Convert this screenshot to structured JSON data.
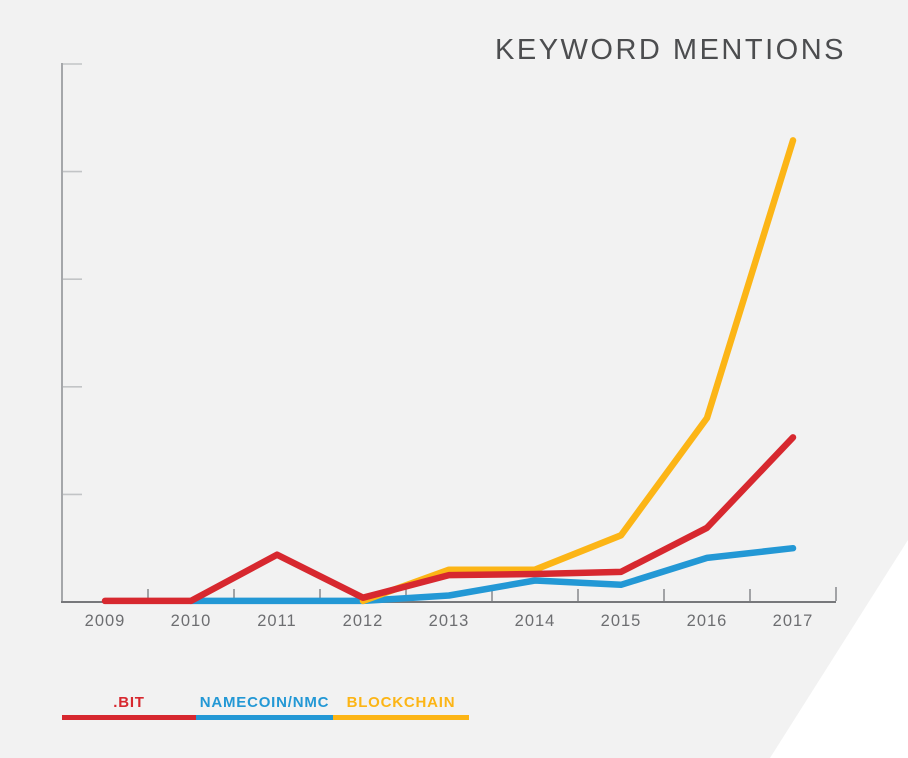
{
  "title": "KEYWORD MENTIONS",
  "colors": {
    "background": "#f2f2f2",
    "corner_cutout": "#ffffff",
    "title_text": "#4c4d4f",
    "axis_label_text": "#6d6e71",
    "x_axis": "#77787b",
    "y_axis": "#a5a7aa",
    "bit_red": "#d7282f",
    "namecoin_blue": "#2398d5",
    "blockchain_yellow": "#fcb516"
  },
  "legend": {
    "items": [
      {
        "label": ".BIT",
        "color": "#d7282f"
      },
      {
        "label": "NAMECOIN/NMC",
        "color": "#2398d5"
      },
      {
        "label": "BLOCKCHAIN",
        "color": "#fcb516"
      }
    ]
  },
  "chart_data": {
    "type": "line",
    "title": "KEYWORD MENTIONS",
    "categories": [
      "2009",
      "2010",
      "2011",
      "2012",
      "2013",
      "2014",
      "2015",
      "2016",
      "2017"
    ],
    "series": [
      {
        "name": ".BIT",
        "color": "#d7282f",
        "values": [
          0.01,
          0.01,
          0.44,
          0.04,
          0.25,
          0.26,
          0.28,
          0.69,
          1.53
        ]
      },
      {
        "name": "NAMECOIN/NMC",
        "color": "#2398d5",
        "values": [
          null,
          0.01,
          0.01,
          0.01,
          0.06,
          0.2,
          0.16,
          0.41,
          0.5
        ]
      },
      {
        "name": "BLOCKCHAIN",
        "color": "#fcb516",
        "values": [
          null,
          null,
          null,
          0.01,
          0.3,
          0.3,
          0.62,
          1.71,
          4.29
        ]
      }
    ],
    "xlabel": "",
    "ylabel": "",
    "ylim": [
      0,
      5
    ],
    "yticks": [
      1,
      2,
      3,
      4,
      5
    ],
    "yticklabels_shown": false,
    "grid": false,
    "legend_position": "bottom-left",
    "units_note": "y-axis ticks are unlabeled; values are expressed in tick units estimated from the plot"
  }
}
